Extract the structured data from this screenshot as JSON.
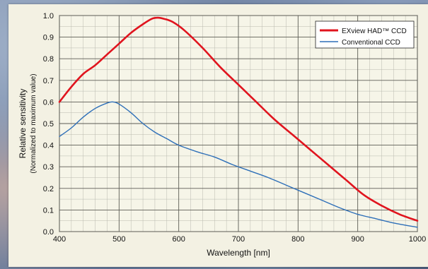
{
  "chart_data": {
    "type": "line",
    "title": "",
    "xlabel": "Wavelength [nm]",
    "ylabel": "Relative sensitivity",
    "ylabel_sub": "(Normalized to maximum value)",
    "xlim": [
      400,
      1000
    ],
    "ylim": [
      0.0,
      1.0
    ],
    "xticks": [
      "400",
      "500",
      "600",
      "700",
      "800",
      "900",
      "1000"
    ],
    "yticks": [
      "0.0",
      "0.1",
      "0.2",
      "0.3",
      "0.4",
      "0.5",
      "0.6",
      "0.7",
      "0.8",
      "0.9",
      "1.0"
    ],
    "grid": true,
    "legend_position": "top-right",
    "series": [
      {
        "name": "EXview HAD™ CCD",
        "color": "#e0141e",
        "x": [
          400,
          420,
          440,
          460,
          480,
          500,
          520,
          540,
          555,
          565,
          575,
          590,
          610,
          640,
          670,
          700,
          730,
          760,
          790,
          820,
          850,
          880,
          910,
          940,
          970,
          1000
        ],
        "y": [
          0.6,
          0.67,
          0.73,
          0.77,
          0.82,
          0.87,
          0.92,
          0.96,
          0.985,
          0.99,
          0.985,
          0.97,
          0.93,
          0.85,
          0.76,
          0.68,
          0.6,
          0.52,
          0.45,
          0.38,
          0.31,
          0.24,
          0.17,
          0.12,
          0.08,
          0.05
        ]
      },
      {
        "name": "Conventional CCD",
        "color": "#2e6fb8",
        "x": [
          400,
          420,
          440,
          460,
          480,
          490,
          500,
          520,
          540,
          560,
          580,
          600,
          630,
          660,
          690,
          720,
          750,
          780,
          810,
          840,
          870,
          900,
          930,
          960,
          1000
        ],
        "y": [
          0.44,
          0.48,
          0.53,
          0.57,
          0.595,
          0.6,
          0.59,
          0.55,
          0.5,
          0.46,
          0.43,
          0.4,
          0.37,
          0.345,
          0.31,
          0.28,
          0.25,
          0.215,
          0.18,
          0.145,
          0.11,
          0.08,
          0.06,
          0.04,
          0.02
        ]
      }
    ]
  }
}
